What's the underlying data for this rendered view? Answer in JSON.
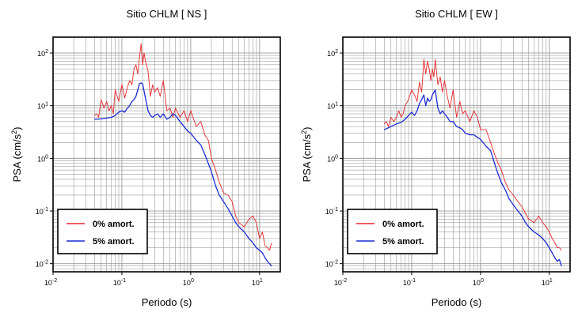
{
  "chart_data": [
    {
      "type": "line",
      "title": "Sitio CHLM [ NS ]",
      "xlabel": "Periodo (s)",
      "ylabel_main": "PSA (cm/s",
      "ylabel_sup": "2",
      "ylabel_tail": ")",
      "xscale": "log",
      "yscale": "log",
      "xlim": [
        0.01,
        20
      ],
      "ylim": [
        0.007,
        200
      ],
      "x_ticks": [
        {
          "base": "10",
          "exp": "-2"
        },
        {
          "base": "10",
          "exp": "-1"
        },
        {
          "base": "10",
          "exp": "0"
        },
        {
          "base": "10",
          "exp": "1"
        }
      ],
      "y_ticks": [
        {
          "base": "10",
          "exp": "-2"
        },
        {
          "base": "10",
          "exp": "-1"
        },
        {
          "base": "10",
          "exp": "0"
        },
        {
          "base": "10",
          "exp": "1"
        },
        {
          "base": "10",
          "exp": "2"
        }
      ],
      "grid": true,
      "legend_position": "bottom-left",
      "series": [
        {
          "name": "0% amort.",
          "color": "#e8262b",
          "x": [
            0.04,
            0.043,
            0.046,
            0.05,
            0.055,
            0.06,
            0.065,
            0.07,
            0.075,
            0.08,
            0.09,
            0.1,
            0.11,
            0.12,
            0.13,
            0.14,
            0.15,
            0.16,
            0.17,
            0.18,
            0.19,
            0.2,
            0.21,
            0.22,
            0.24,
            0.26,
            0.28,
            0.3,
            0.33,
            0.36,
            0.4,
            0.45,
            0.5,
            0.55,
            0.6,
            0.7,
            0.8,
            0.9,
            1.0,
            1.2,
            1.4,
            1.6,
            1.8,
            2.0,
            2.3,
            2.6,
            3.0,
            3.5,
            4.0,
            4.5,
            5,
            6,
            7,
            8,
            9,
            10,
            11,
            12,
            13,
            14,
            15
          ],
          "y": [
            6.5,
            7,
            6,
            13,
            9,
            12,
            8,
            10,
            7,
            20,
            12,
            25,
            14,
            22,
            30,
            25,
            50,
            60,
            40,
            80,
            150,
            60,
            100,
            70,
            45,
            15,
            25,
            18,
            22,
            15,
            30,
            8,
            9,
            6,
            9,
            6,
            8,
            5,
            8,
            4,
            5,
            2.8,
            2.2,
            1.0,
            0.6,
            0.35,
            0.22,
            0.2,
            0.15,
            0.08,
            0.06,
            0.05,
            0.07,
            0.08,
            0.06,
            0.03,
            0.04,
            0.022,
            0.02,
            0.018,
            0.025
          ]
        },
        {
          "name": "5% amort.",
          "color": "#1c2bd6",
          "x": [
            0.04,
            0.05,
            0.06,
            0.07,
            0.08,
            0.09,
            0.1,
            0.11,
            0.12,
            0.13,
            0.14,
            0.15,
            0.16,
            0.17,
            0.18,
            0.19,
            0.2,
            0.22,
            0.24,
            0.26,
            0.28,
            0.3,
            0.33,
            0.36,
            0.4,
            0.45,
            0.5,
            0.55,
            0.6,
            0.7,
            0.8,
            0.9,
            1.0,
            1.2,
            1.4,
            1.6,
            1.8,
            2.0,
            2.3,
            2.6,
            3.0,
            3.5,
            4.0,
            4.5,
            5,
            6,
            7,
            8,
            9,
            10,
            11,
            12,
            13,
            14,
            15
          ],
          "y": [
            5.5,
            5.6,
            5.8,
            6,
            6.5,
            7.5,
            8,
            7.5,
            9,
            10,
            12,
            13,
            15,
            20,
            26,
            27,
            26,
            14,
            8,
            6.5,
            6,
            6.5,
            7,
            6,
            7,
            5.5,
            6,
            7,
            6.5,
            5,
            4,
            3.3,
            3.0,
            2.2,
            1.8,
            1.2,
            0.8,
            0.55,
            0.3,
            0.2,
            0.15,
            0.11,
            0.08,
            0.06,
            0.05,
            0.04,
            0.03,
            0.025,
            0.02,
            0.018,
            0.016,
            0.013,
            0.011,
            0.01,
            0.009
          ]
        }
      ]
    },
    {
      "type": "line",
      "title": "Sitio CHLM [ EW ]",
      "xlabel": "Periodo (s)",
      "ylabel_main": "PSA (cm/s",
      "ylabel_sup": "2",
      "ylabel_tail": ")",
      "xscale": "log",
      "yscale": "log",
      "xlim": [
        0.01,
        20
      ],
      "ylim": [
        0.007,
        200
      ],
      "x_ticks": [
        {
          "base": "10",
          "exp": "-2"
        },
        {
          "base": "10",
          "exp": "-1"
        },
        {
          "base": "10",
          "exp": "0"
        },
        {
          "base": "10",
          "exp": "1"
        }
      ],
      "y_ticks": [
        {
          "base": "10",
          "exp": "-2"
        },
        {
          "base": "10",
          "exp": "-1"
        },
        {
          "base": "10",
          "exp": "0"
        },
        {
          "base": "10",
          "exp": "1"
        },
        {
          "base": "10",
          "exp": "2"
        }
      ],
      "grid": true,
      "legend_position": "bottom-left",
      "series": [
        {
          "name": "0% amort.",
          "color": "#e8262b",
          "x": [
            0.04,
            0.043,
            0.046,
            0.05,
            0.055,
            0.06,
            0.065,
            0.07,
            0.075,
            0.08,
            0.09,
            0.1,
            0.11,
            0.12,
            0.13,
            0.14,
            0.15,
            0.16,
            0.17,
            0.18,
            0.19,
            0.2,
            0.21,
            0.22,
            0.24,
            0.26,
            0.28,
            0.3,
            0.33,
            0.36,
            0.4,
            0.45,
            0.5,
            0.55,
            0.6,
            0.7,
            0.8,
            0.9,
            1.0,
            1.2,
            1.4,
            1.6,
            1.8,
            2.0,
            2.3,
            2.6,
            3.0,
            3.5,
            4.0,
            4.5,
            5,
            6,
            7,
            8,
            9,
            10,
            11,
            12,
            13,
            14,
            15
          ],
          "y": [
            4.5,
            5,
            4,
            6,
            5,
            6,
            8,
            6,
            7,
            10,
            13,
            20,
            16,
            12,
            28,
            18,
            75,
            40,
            70,
            50,
            30,
            50,
            35,
            75,
            25,
            35,
            18,
            30,
            15,
            9,
            20,
            6,
            12,
            7,
            8,
            5,
            8,
            6,
            3.5,
            3.5,
            2,
            1.2,
            0.8,
            0.6,
            0.35,
            0.25,
            0.2,
            0.15,
            0.12,
            0.09,
            0.07,
            0.06,
            0.08,
            0.06,
            0.05,
            0.04,
            0.03,
            0.025,
            0.02,
            0.02,
            0.018
          ]
        },
        {
          "name": "5% amort.",
          "color": "#1c2bd6",
          "x": [
            0.04,
            0.05,
            0.06,
            0.07,
            0.08,
            0.09,
            0.1,
            0.11,
            0.12,
            0.13,
            0.14,
            0.15,
            0.16,
            0.17,
            0.18,
            0.19,
            0.2,
            0.22,
            0.24,
            0.26,
            0.28,
            0.3,
            0.33,
            0.36,
            0.4,
            0.45,
            0.5,
            0.55,
            0.6,
            0.7,
            0.8,
            0.9,
            1.0,
            1.2,
            1.4,
            1.6,
            1.8,
            2.0,
            2.3,
            2.6,
            3.0,
            3.5,
            4.0,
            4.5,
            5,
            6,
            7,
            8,
            9,
            10,
            11,
            12,
            13,
            14,
            15
          ],
          "y": [
            3.5,
            4,
            4.5,
            4.8,
            5.5,
            6.5,
            7.5,
            6.5,
            8,
            11,
            13,
            16,
            10,
            14,
            12,
            13,
            16,
            20,
            9,
            7,
            8,
            7,
            6,
            5,
            5,
            4,
            3.8,
            3.5,
            3.0,
            2.8,
            2.8,
            2.5,
            2.3,
            1.7,
            1.4,
            0.8,
            0.5,
            0.35,
            0.25,
            0.17,
            0.13,
            0.1,
            0.08,
            0.06,
            0.05,
            0.04,
            0.035,
            0.03,
            0.025,
            0.02,
            0.016,
            0.013,
            0.011,
            0.012,
            0.009
          ]
        }
      ]
    }
  ]
}
